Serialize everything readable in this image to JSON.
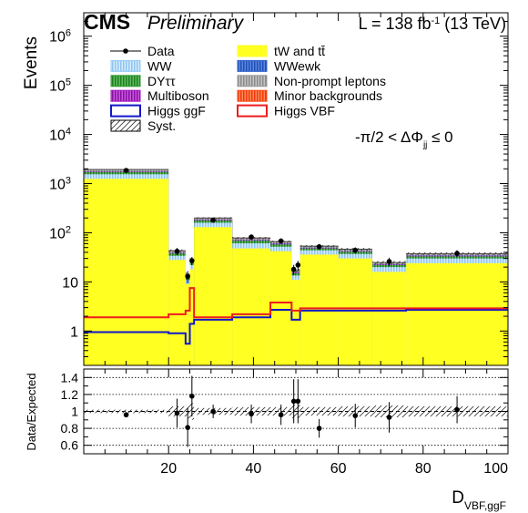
{
  "header": {
    "experiment": "CMS",
    "status": "Preliminary",
    "lumi_prefix": "L = 138 fb",
    "lumi_exp": "-1",
    "lumi_suffix": " (13 TeV)"
  },
  "annotation": {
    "main": "-π/2 < ΔΦ",
    "sub": "jj",
    "tail": " ≤ 0"
  },
  "colors": {
    "top": "#ffff22",
    "ww": "#99ccf7",
    "dytt": "#2f9a2f",
    "multiboson": "#a316c0",
    "wwewk": "#3366cc",
    "nonprompt": "#999999",
    "minor": "#ff4a14",
    "higgs_ggf": "#1018c8",
    "higgs_vbf": "#ee1c1c",
    "data": "#000000"
  },
  "chart_data": [
    {
      "type": "bar",
      "stacked": true,
      "log_y": true,
      "ylabel": "Events",
      "xlabel": "D",
      "xlabel_sub": "VBF,ggF",
      "xlim": [
        0,
        100
      ],
      "ylim": [
        0.2,
        3000000
      ],
      "y_ticks": [
        {
          "v": 1,
          "base": "1",
          "exp": ""
        },
        {
          "v": 10,
          "base": "10",
          "exp": ""
        },
        {
          "v": 100,
          "base": "10",
          "exp": "2"
        },
        {
          "v": 1000,
          "base": "10",
          "exp": "3"
        },
        {
          "v": 10000,
          "base": "10",
          "exp": "4"
        },
        {
          "v": 100000,
          "base": "10",
          "exp": "5"
        },
        {
          "v": 1000000,
          "base": "10",
          "exp": "6"
        }
      ],
      "bin_edges": [
        0,
        20,
        24,
        25,
        26,
        35,
        44,
        49,
        50,
        51,
        60,
        68,
        76,
        100
      ],
      "series": [
        {
          "key": "top",
          "name": "tW and tt̄",
          "values": [
            1250,
            28,
            9,
            18,
            130,
            48,
            42,
            11,
            11,
            36,
            30,
            16,
            24
          ]
        },
        {
          "key": "ww",
          "name": "WW",
          "values": [
            300,
            6,
            2,
            4,
            30,
            13,
            10,
            2.5,
            2.5,
            8,
            7,
            4,
            6
          ]
        },
        {
          "key": "dytt",
          "name": "DYττ",
          "values": [
            170,
            4,
            1.5,
            2.5,
            18,
            8,
            6,
            1.5,
            1.5,
            4,
            4,
            2,
            3
          ]
        },
        {
          "key": "multiboson",
          "name": "Multiboson",
          "values": [
            45,
            1,
            0.4,
            0.8,
            5,
            2,
            2,
            0.5,
            0.5,
            1.2,
            1,
            0.6,
            1
          ]
        },
        {
          "key": "wwewk",
          "name": "WWewk",
          "values": [
            5,
            0.3,
            0.1,
            0.3,
            1.5,
            0.8,
            0.8,
            0.2,
            0.2,
            0.5,
            0.5,
            0.3,
            0.5
          ]
        },
        {
          "key": "nonprompt",
          "name": "Non-prompt leptons",
          "values": [
            140,
            3,
            1,
            2,
            12,
            5,
            4,
            1,
            1,
            3,
            3,
            1.5,
            2.5
          ]
        },
        {
          "key": "minor",
          "name": "Minor backgrounds",
          "values": [
            30,
            0.8,
            0.3,
            0.6,
            3,
            1.5,
            1.2,
            0.3,
            0.3,
            0.8,
            0.8,
            0.4,
            0.6
          ]
        }
      ],
      "signals": [
        {
          "key": "higgs_ggf",
          "name": "Higgs ggF",
          "values": [
            0.95,
            0.9,
            0.55,
            1.4,
            1.7,
            1.9,
            2.7,
            1.7,
            1.7,
            2.6,
            2.6,
            2.6,
            2.7
          ]
        },
        {
          "key": "higgs_vbf",
          "name": "Higgs VBF",
          "values": [
            1.9,
            2.2,
            2.6,
            7.5,
            1.9,
            2.2,
            3.8,
            2.6,
            2.6,
            2.9,
            2.9,
            2.9,
            2.9
          ]
        }
      ],
      "data_points": {
        "name": "Data",
        "x": [
          10,
          22,
          24.5,
          25.5,
          30.5,
          39.5,
          46.5,
          49.5,
          50.5,
          55.5,
          64,
          72,
          88
        ],
        "y": [
          1850,
          42,
          13,
          27,
          180,
          82,
          68,
          18,
          22,
          52,
          44,
          26,
          38
        ],
        "yerr": [
          45,
          7,
          3.6,
          5.2,
          14,
          9,
          8,
          4.2,
          4.7,
          7,
          6.5,
          5,
          6
        ]
      },
      "syst_label": "Syst.",
      "legend": {
        "placement": "top-left",
        "left_column": [
          "Data",
          "WW",
          "DYττ",
          "Multiboson",
          "Higgs ggF",
          "Syst."
        ],
        "right_column": [
          "tW and tt̄",
          "WWewk",
          "Non-prompt leptons",
          "Minor backgrounds",
          "Higgs VBF"
        ]
      }
    },
    {
      "type": "scatter",
      "ylabel": "Data/Expected",
      "xlabel": "D",
      "xlabel_sub": "VBF,ggF",
      "xlim": [
        0,
        100
      ],
      "ylim": [
        0.5,
        1.5
      ],
      "x_ticks": [
        20,
        40,
        60,
        80,
        100
      ],
      "y_ticks": [
        0.6,
        0.8,
        1,
        1.2,
        1.4
      ],
      "y_tick_labels": [
        "0.6",
        "0.8",
        "1",
        "1.2",
        "1.4"
      ],
      "grid_lines": [
        0.6,
        0.8,
        1.2,
        1.4
      ],
      "syst_band_rel": [
        0.02,
        0.06,
        0.08,
        0.1,
        0.04,
        0.05,
        0.05,
        0.08,
        0.08,
        0.05,
        0.06,
        0.07,
        0.06
      ],
      "ratio": {
        "x": [
          10,
          22,
          24.5,
          25.5,
          30.5,
          39.5,
          46.5,
          49.5,
          50.5,
          55.5,
          64,
          72,
          88
        ],
        "y": [
          0.96,
          0.98,
          0.81,
          1.18,
          1.0,
          0.97,
          0.96,
          1.12,
          1.12,
          0.8,
          0.95,
          0.93,
          1.02
        ],
        "yerr": [
          0.03,
          0.17,
          0.23,
          0.24,
          0.08,
          0.11,
          0.12,
          0.26,
          0.26,
          0.11,
          0.14,
          0.18,
          0.16
        ]
      }
    }
  ]
}
